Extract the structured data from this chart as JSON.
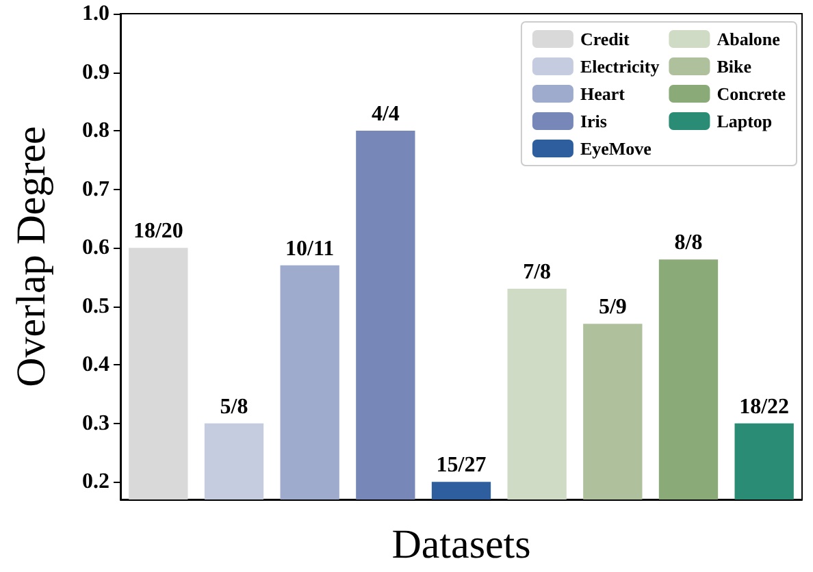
{
  "chart_data": {
    "type": "bar",
    "xlabel": "Datasets",
    "ylabel": "Overlap Degree",
    "categories": [
      null,
      null,
      null,
      null,
      null,
      null,
      null,
      null,
      null
    ],
    "series": [
      {
        "name": "Credit",
        "color": "#d9d9d9",
        "values": [
          0.6,
          null,
          null,
          null,
          null,
          null,
          null,
          null,
          null
        ]
      },
      {
        "name": "Electricity",
        "color": "#c6cce0",
        "values": [
          null,
          0.3,
          null,
          null,
          null,
          null,
          null,
          null,
          null
        ]
      },
      {
        "name": "Heart",
        "color": "#9eabcc",
        "values": [
          null,
          null,
          0.57,
          null,
          null,
          null,
          null,
          null,
          null
        ]
      },
      {
        "name": "Iris",
        "color": "#7788b8",
        "values": [
          null,
          null,
          null,
          0.8,
          null,
          null,
          null,
          null,
          null
        ]
      },
      {
        "name": "EyeMove",
        "color": "#2e5e9e",
        "values": [
          null,
          null,
          null,
          null,
          0.2,
          null,
          null,
          null,
          null
        ]
      },
      {
        "name": "Abalone",
        "color": "#cfdbc5",
        "values": [
          null,
          null,
          null,
          null,
          null,
          0.53,
          null,
          null,
          null
        ]
      },
      {
        "name": "Bike",
        "color": "#aec19c",
        "values": [
          null,
          null,
          null,
          null,
          null,
          null,
          0.47,
          null,
          null
        ]
      },
      {
        "name": "Concrete",
        "color": "#8aab78",
        "values": [
          null,
          null,
          null,
          null,
          null,
          null,
          null,
          0.58,
          null
        ]
      },
      {
        "name": "Laptop",
        "color": "#2a8c74",
        "values": [
          null,
          null,
          null,
          null,
          null,
          null,
          null,
          null,
          0.3
        ]
      }
    ],
    "annotations": [
      {
        "text": "18/20",
        "y": 0.6
      },
      {
        "text": "5/8",
        "y": 0.3
      },
      {
        "text": "10/11",
        "y": 0.57
      },
      {
        "text": "4/4",
        "y": 0.8
      },
      {
        "text": "15/27",
        "y": 0.2
      },
      {
        "text": "7/8",
        "y": 0.53
      },
      {
        "text": "5/9",
        "y": 0.47
      },
      {
        "text": "8/8",
        "y": 0.58
      },
      {
        "text": "18/22",
        "y": 0.3
      }
    ],
    "ylim": [
      0.17,
      1.0
    ],
    "yticks": [
      0.2,
      0.3,
      0.4,
      0.5,
      0.6,
      0.7,
      0.8,
      0.9,
      {
        "value": 1.0,
        "label": "1.0"
      }
    ],
    "grid": false,
    "legend": "top right"
  }
}
